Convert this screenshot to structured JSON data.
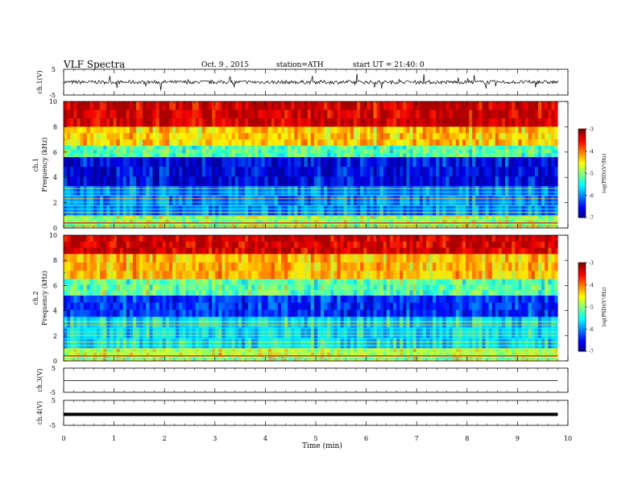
{
  "header": {
    "title": "VLF Spectra",
    "date": "Oct. 9 , 2015",
    "station": "station=ATH",
    "start": "start UT = 21:40: 0"
  },
  "chart_data": [
    {
      "type": "line",
      "panel": "ch1-waveform",
      "ylabel": "ch.1(V)",
      "ylim": [
        -5,
        5
      ],
      "yticks": [
        "5",
        "-5"
      ],
      "x_unit": "min",
      "xlim": [
        0,
        10
      ],
      "note": "noisy trace around 0 V, approx ±1 V"
    },
    {
      "type": "heatmap",
      "panel": "ch1-spectrogram",
      "ylabel_line1": "ch.1",
      "ylabel_line2": "Frequency (kHz)",
      "ylim": [
        0,
        10
      ],
      "yticks": [
        "0",
        "2",
        "4",
        "6",
        "8",
        "10"
      ],
      "xlim": [
        0,
        9.8
      ],
      "colorbar": {
        "label": "log(PSD)(V²/Hz)",
        "range": [
          -7,
          -3
        ],
        "ticks": [
          "-3",
          "-4",
          "-5",
          "-6",
          "-7"
        ]
      },
      "bands": [
        {
          "f_low": 8.0,
          "f_high": 10.0,
          "logpsd": -3.4
        },
        {
          "f_low": 6.5,
          "f_high": 8.0,
          "logpsd": -4.4
        },
        {
          "f_low": 5.6,
          "f_high": 6.5,
          "logpsd": -5.3
        },
        {
          "f_low": 3.3,
          "f_high": 5.6,
          "logpsd": -6.7
        },
        {
          "f_low": 1.0,
          "f_high": 3.3,
          "logpsd": -6.1
        },
        {
          "f_low": 0.0,
          "f_high": 1.0,
          "logpsd": -5.0
        }
      ]
    },
    {
      "type": "heatmap",
      "panel": "ch2-spectrogram",
      "ylabel_line1": "ch.2",
      "ylabel_line2": "Frequency (kHz)",
      "ylim": [
        0,
        10
      ],
      "yticks": [
        "0",
        "2",
        "4",
        "6",
        "8",
        "10"
      ],
      "xlim": [
        0,
        9.8
      ],
      "colorbar": {
        "label": "log(PSD)(V²/Hz)",
        "range": [
          -7,
          -3
        ],
        "ticks": [
          "-3",
          "-4",
          "-5",
          "-6",
          "-7"
        ]
      },
      "bands": [
        {
          "f_low": 8.5,
          "f_high": 10.0,
          "logpsd": -3.4
        },
        {
          "f_low": 6.5,
          "f_high": 8.5,
          "logpsd": -4.3
        },
        {
          "f_low": 5.2,
          "f_high": 6.5,
          "logpsd": -5.2
        },
        {
          "f_low": 3.5,
          "f_high": 5.2,
          "logpsd": -6.4
        },
        {
          "f_low": 1.0,
          "f_high": 3.5,
          "logpsd": -5.7
        },
        {
          "f_low": 0.0,
          "f_high": 1.0,
          "logpsd": -4.8
        }
      ]
    },
    {
      "type": "line",
      "panel": "ch3-waveform",
      "ylabel": "ch.3(V)",
      "ylim": [
        -5,
        5
      ],
      "yticks": [
        "5",
        "-5"
      ],
      "x": [
        0,
        9.8
      ],
      "y": [
        -0.2,
        -0.2
      ]
    },
    {
      "type": "line",
      "panel": "ch4-waveform",
      "ylabel": "ch.4(V)",
      "ylim": [
        -5,
        5
      ],
      "yticks": [
        "5",
        "-5"
      ],
      "x": [
        0,
        9.8
      ],
      "y": [
        -0.6,
        -0.6
      ]
    }
  ],
  "x_axis": {
    "label": "Time (min)",
    "range": [
      0,
      10
    ],
    "ticks": [
      "0",
      "1",
      "2",
      "3",
      "4",
      "5",
      "6",
      "7",
      "8",
      "9",
      "10"
    ]
  }
}
